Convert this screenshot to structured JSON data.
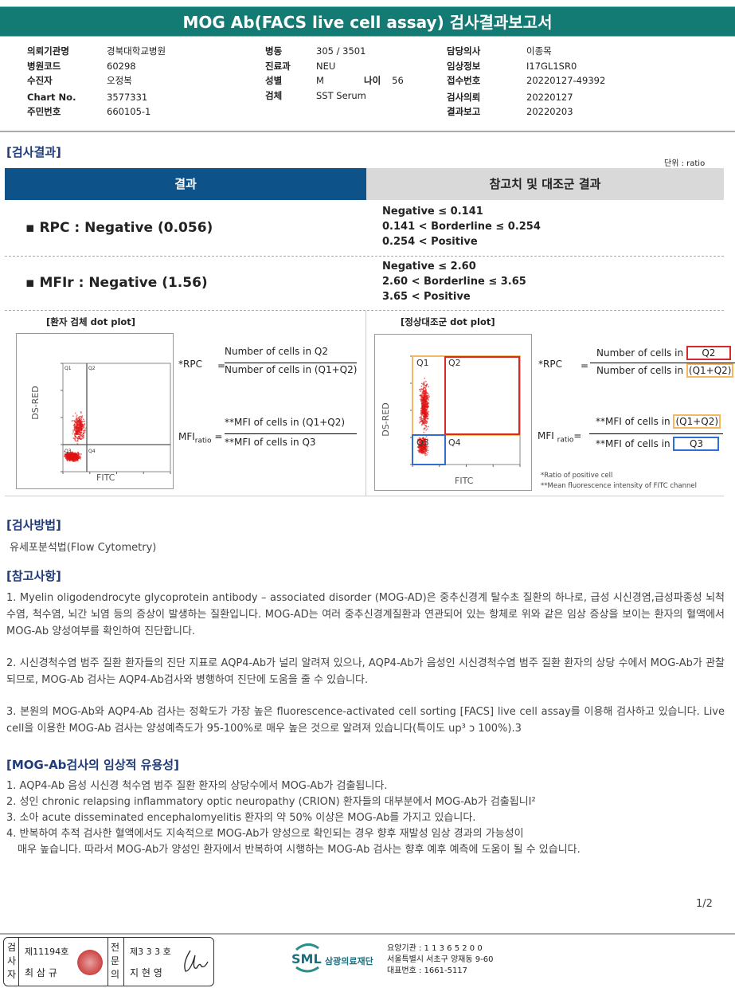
{
  "header": {
    "title": "MOG Ab(FACS live cell assay) 검사결과보고서"
  },
  "info": {
    "col1": [
      {
        "k": "의뢰기관명",
        "v": "경북대학교병원"
      },
      {
        "k": "병원코드",
        "v": "60298"
      },
      {
        "k": "수진자",
        "v": "오정복"
      },
      {
        "k": "Chart No.",
        "v": "3577331"
      },
      {
        "k": "주민번호",
        "v": "660105-1"
      }
    ],
    "col2": [
      {
        "k": "병동",
        "v": "305 / 3501"
      },
      {
        "k": "진료과",
        "v": "NEU"
      },
      {
        "k": "성별",
        "v": "M"
      },
      {
        "k": "검체",
        "v": "SST Serum"
      }
    ],
    "age_label": "나이",
    "age": "56",
    "col3": [
      {
        "k": "담당의사",
        "v": "이종목"
      },
      {
        "k": "임상정보",
        "v": "I17GL1SR0"
      },
      {
        "k": "접수번호",
        "v": "20220127-49392"
      },
      {
        "k": "검사의뢰",
        "v": "20220127"
      },
      {
        "k": "결과보고",
        "v": "20220203"
      }
    ]
  },
  "results": {
    "section": "[검사결과]",
    "unit": "단위 : ratio",
    "col_result": "결과",
    "col_ref": "참고치 및 대조군 결과",
    "rows": [
      {
        "text": "▪ RPC  :  Negative   (0.056)",
        "ref": [
          "Negative ≤ 0.141",
          "0.141 < Borderline ≤ 0.254",
          "0.254 < Positive"
        ]
      },
      {
        "text": "▪ MFIr  : Negative   (1.56)",
        "ref": [
          "Negative ≤ 2.60",
          "2.60 < Borderline ≤ 3.65",
          "3.65 < Positive"
        ]
      }
    ]
  },
  "plots": {
    "patient_title": "[환자 검체 dot plot]",
    "control_title": "[정상대조군 dot plot]",
    "ylabel": "DS-RED",
    "xlabel": "FITC",
    "quadrants": [
      "Q1",
      "Q2",
      "Q3",
      "Q4"
    ],
    "rpc_label": "*RPC",
    "eq": "=",
    "rpc_num": "Number of cells in Q2",
    "rpc_den": "Number of cells in (Q1+Q2)",
    "mfi_label": "MFI",
    "mfi_sub": "ratio",
    "mfi_num": "**MFI of cells in (Q1+Q2)",
    "mfi_den": "**MFI of cells in Q3",
    "cells_in": "Number of cells in",
    "mfi_cells_in": "**MFI of cells in",
    "q2": "Q2",
    "q1q2": "(Q1+Q2)",
    "q3": "Q3",
    "note1": "*Ratio of positive cell",
    "note2": "**Mean  fluorescence intensity of FITC channel",
    "colors": {
      "q1q2": "#f4b860",
      "q2": "#d42a2a",
      "q3": "#2f6fd0"
    }
  },
  "method": {
    "section": "[검사방법]",
    "text": "유세포분석법(Flow Cytometry)"
  },
  "notes": {
    "section": "[참고사항]",
    "paras": [
      "1. Myelin oligodendrocyte glycoprotein antibody – associated disorder (MOG-AD)은 중추신경계 탈수초 질환의 하나로, 급성 시신경염,급성파종성 뇌척수염, 척수염, 뇌간 뇌염 등의 증상이 발생하는 질환입니다. MOG-AD는 여러 중추신경계질환과 연관되어 있는 항체로 위와 같은 임상 증상을 보이는 환자의 혈액에서 MOG-Ab 양성여부를 확인하여 진단합니다.",
      "2. 시신경척수염 범주 질환 환자들의 진단 지표로 AQP4-Ab가 널리 알려져 있으나, AQP4-Ab가 음성인 시신경척수염 범주 질환 환자의 상당 수에서 MOG-Ab가 관찰되므로, MOG-Ab 검사는 AQP4-Ab검사와 병행하여 진단에 도움을 줄 수 있습니다.",
      "3. 본원의 MOG-Ab와 AQP4-Ab 검사는 정확도가 가장 높은 fluorescence-activated cell sorting [FACS] live cell assay를 이용해 검사하고 있습니다. Live cell을 이용한 MOG-Ab 검사는 양성예측도가 95-100%로 매우 높은 것으로 알려져 있습니다(특이도 up³ ɔ 100%).3"
    ]
  },
  "utility": {
    "section": "[MOG-Ab검사의 임상적 유용성]",
    "items": [
      "1.  AQP4-Ab 음성 시신경 척수염 범주 질환 환자의 상당수에서 MOG-Ab가 검출됩니다.",
      "2.  성인 chronic relapsing inflammatory optic neuropathy (CRION) 환자들의 대부분에서 MOG-Ab가 검출됩니I²",
      "3.  소아 acute disseminated encephalomyelitis 환자의 약 50% 이상은 MOG-Ab를 가지고 있습니다.",
      "4.  반복하여 추적 검사한 혈액에서도 지속적으로 MOG-Ab가 양성으로 확인되는 경우 향후 재발성 임상 경과의 가능성이",
      "매우 높습니다. 따라서 MOG-Ab가 양성인 환자에서 반복하여 시행하는 MOG-Ab 검사는 향후 예후 예측에 도움이 될 수 있습니다."
    ]
  },
  "page": "1/2",
  "footer": {
    "examiner_label": "검사자",
    "examiner_no": "제11194호",
    "examiner_name": "최 삼 규",
    "specialist_label": "전문의",
    "specialist_no": "제3 3 3 호",
    "specialist_name": "지 현 영",
    "logo": "SML",
    "org": "삼광의료재단",
    "code": "요양기관 : 1 1 3 6 5 2 0 0",
    "address": "서울특별시 서초구 양재동 9-60",
    "phone": "대표번호 : 1661-5117"
  }
}
